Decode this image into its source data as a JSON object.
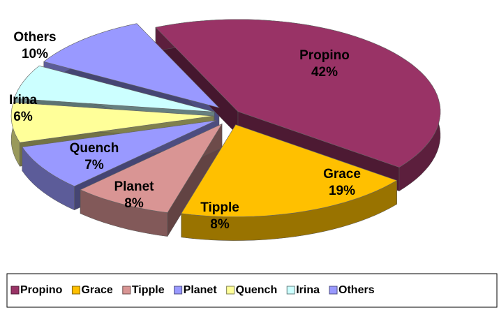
{
  "chart_data": {
    "type": "pie",
    "categories": [
      "Propino",
      "Grace",
      "Tipple",
      "Planet",
      "Quench",
      "Irina",
      "Others"
    ],
    "values": [
      42,
      19,
      8,
      8,
      7,
      6,
      10
    ],
    "value_labels": [
      "42%",
      "19%",
      "8%",
      "8%",
      "7%",
      "6%",
      "10%"
    ],
    "colors": [
      "#993366",
      "#ffc000",
      "#d99594",
      "#9999ff",
      "#ffff99",
      "#ccffff",
      "#9999ff"
    ],
    "legend": "bottom"
  }
}
